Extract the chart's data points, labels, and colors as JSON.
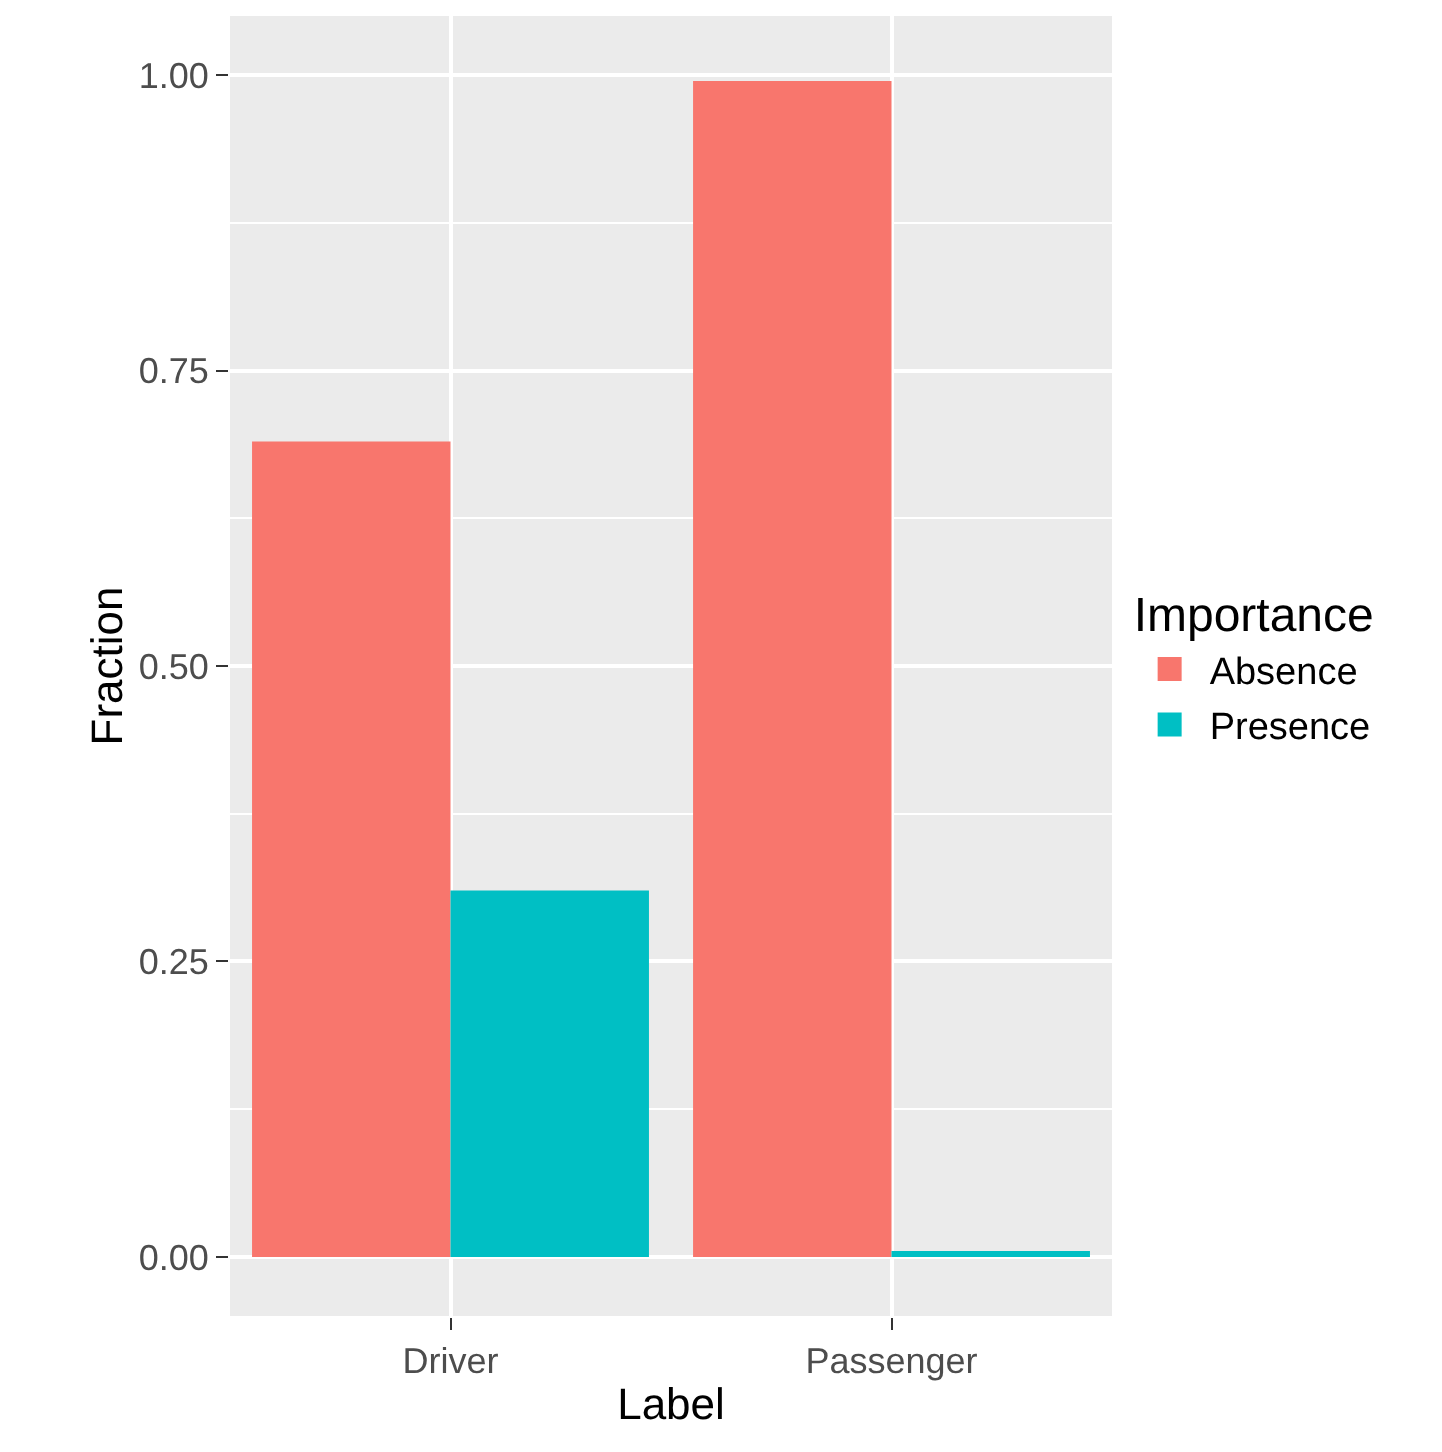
{
  "chart_data": {
    "type": "bar",
    "xlabel": "Label",
    "ylabel": "Fraction",
    "legend_title": "Importance",
    "categories": [
      "Driver",
      "Passenger"
    ],
    "series": [
      {
        "name": "Absence",
        "color": "#f8766d",
        "values": [
          0.69,
          0.995
        ]
      },
      {
        "name": "Presence",
        "color": "#00bfc4",
        "values": [
          0.31,
          0.005
        ]
      }
    ],
    "ylim": [
      -0.05,
      1.05
    ],
    "yticks": [
      {
        "value": 0,
        "label": "0.00"
      },
      {
        "value": 0.25,
        "label": "0.25"
      },
      {
        "value": 0.5,
        "label": "0.50"
      },
      {
        "value": 0.75,
        "label": "0.75"
      },
      {
        "value": 1,
        "label": "1.00"
      }
    ],
    "grid": true,
    "legend": "right"
  }
}
